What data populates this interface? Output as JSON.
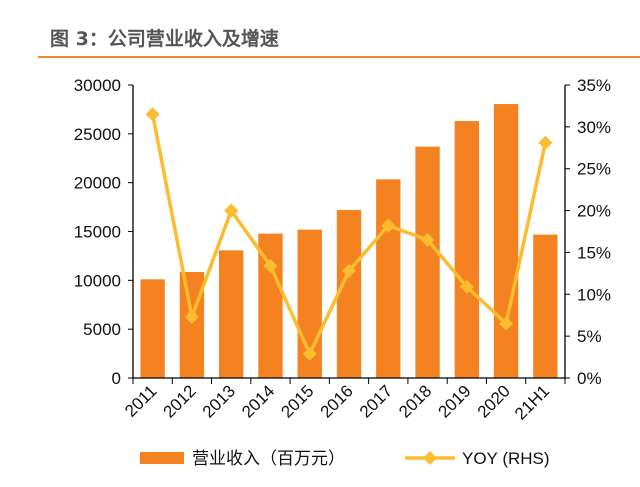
{
  "header": {
    "title": "图 3：公司营业收入及增速"
  },
  "colors": {
    "bar": "#f58220",
    "line": "#fbbd2f",
    "rule": "#f08a2c"
  },
  "chart_data": {
    "type": "bar+line",
    "title": "",
    "categories": [
      "2011",
      "2012",
      "2013",
      "2014",
      "2015",
      "2016",
      "2017",
      "2018",
      "2019",
      "2020",
      "21H1"
    ],
    "series": [
      {
        "name": "营业收入（百万元）",
        "type": "bar",
        "axis": "left",
        "values": [
          10100,
          10850,
          13070,
          14780,
          15190,
          17200,
          20340,
          23690,
          26310,
          28050,
          14680
        ]
      },
      {
        "name": "YOY (RHS)",
        "type": "line",
        "axis": "right",
        "marker": "diamond",
        "values": [
          31.5,
          7.3,
          20.0,
          13.4,
          2.9,
          12.8,
          18.2,
          16.5,
          10.9,
          6.5,
          28.1
        ]
      }
    ],
    "y_left": {
      "lim": [
        0,
        30000
      ],
      "ticks": [
        "0",
        "5000",
        "10000",
        "15000",
        "20000",
        "25000",
        "30000"
      ]
    },
    "y_right": {
      "lim": [
        0,
        35
      ],
      "ticks": [
        "0%",
        "5%",
        "10%",
        "15%",
        "20%",
        "25%",
        "30%",
        "35%"
      ]
    },
    "grid": false,
    "legend": "bottom"
  }
}
